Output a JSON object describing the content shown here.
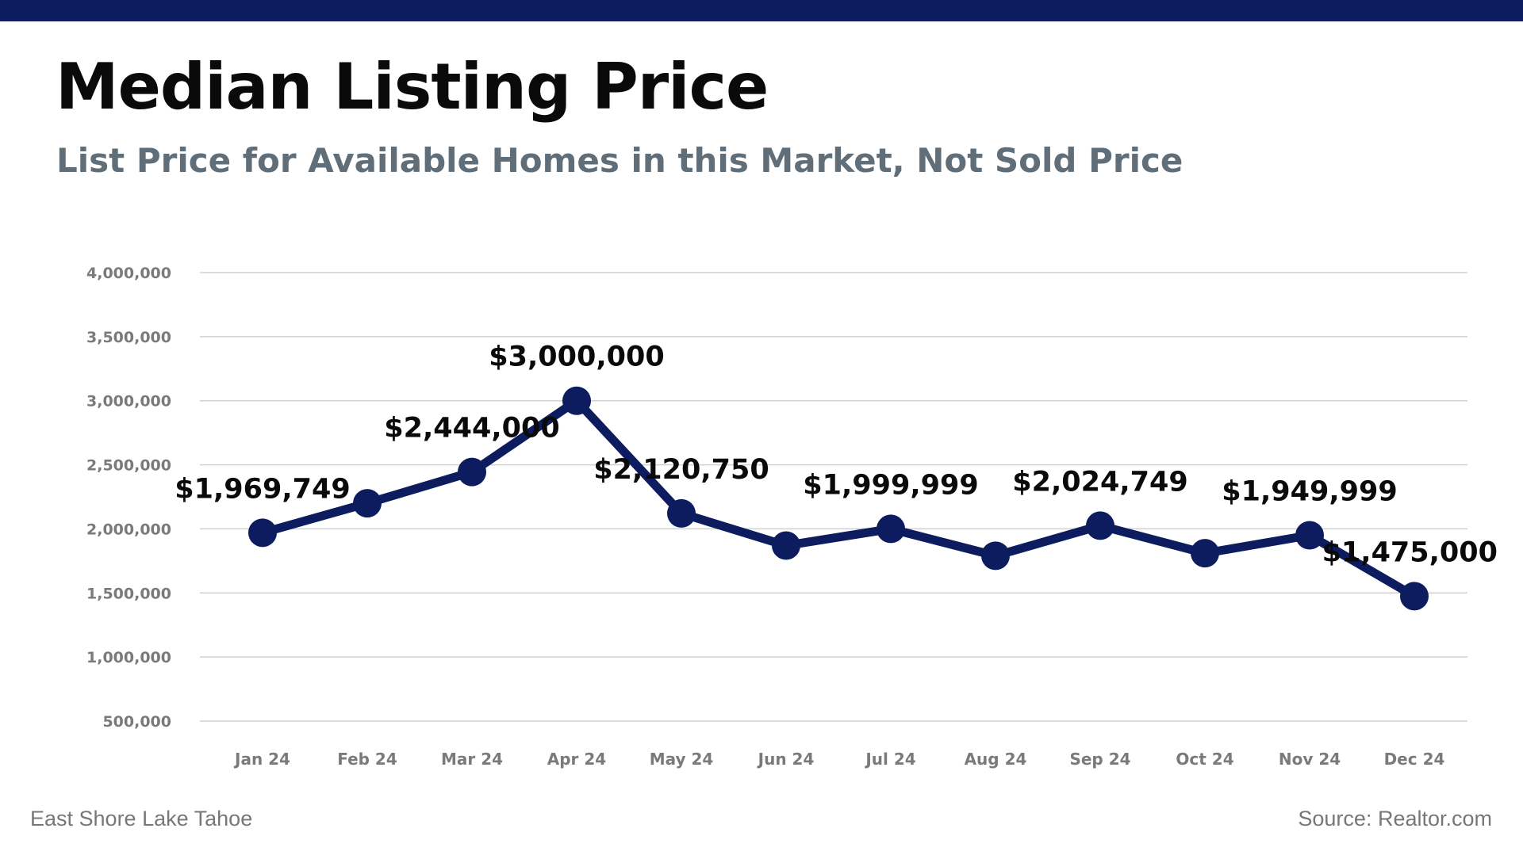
{
  "header": {
    "title": "Median Listing Price",
    "subtitle": "List Price for Available Homes in this Market, Not Sold Price"
  },
  "footer": {
    "left": "East Shore Lake Tahoe",
    "right": "Source: Realtor.com"
  },
  "colors": {
    "accent": "#0c1c5e",
    "subtitle": "#5f6e78",
    "gridline": "#d0d0d0",
    "tick_label": "#7a7a7a"
  },
  "chart_data": {
    "type": "line",
    "title": "",
    "xlabel": "",
    "ylabel": "",
    "categories": [
      "Jan 24",
      "Feb 24",
      "Mar 24",
      "Apr 24",
      "May 24",
      "Jun 24",
      "Jul 24",
      "Aug 24",
      "Sep 24",
      "Oct 24",
      "Nov 24",
      "Dec 24"
    ],
    "series": [
      {
        "values": [
          1969749,
          2200000,
          2444000,
          3000000,
          2120750,
          1870000,
          1999999,
          1790000,
          2024749,
          1810000,
          1949999,
          1475000
        ]
      }
    ],
    "data_labels": [
      "$1,969,749",
      "",
      "$2,444,000",
      "$3,000,000",
      "$2,120,750",
      "",
      "$1,999,999",
      "",
      "$2,024,749",
      "",
      "$1,949,999",
      "$1,475,000"
    ],
    "y_ticks": [
      500000,
      1000000,
      1500000,
      2000000,
      2500000,
      3000000,
      3500000,
      4000000
    ],
    "y_tick_labels": [
      "500,000",
      "1,000,000",
      "1,500,000",
      "2,000,000",
      "2,500,000",
      "3,000,000",
      "3,500,000",
      "4,000,000"
    ],
    "ylim": [
      500000,
      4000000
    ],
    "grid": true,
    "legend": "none"
  }
}
